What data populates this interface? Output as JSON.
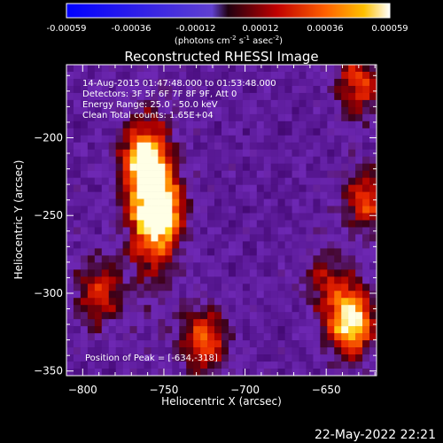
{
  "colorbar": {
    "tick_labels": [
      "-0.00059",
      "-0.00036",
      "-0.00012",
      "0.00012",
      "0.00036",
      "0.00059"
    ],
    "range": [
      -0.00059,
      0.00059
    ],
    "units_label_pre": "(photons cm",
    "units_sup1": "-2",
    "units_mid": " s",
    "units_sup2": "-1",
    "units_mid2": " asec",
    "units_sup3": "-2",
    "units_post": ")"
  },
  "chart_data": {
    "type": "heatmap",
    "title": "Reconstructed RHESSI Image",
    "xlabel": "Heliocentric X (arcsec)",
    "ylabel": "Heliocentric Y (arcsec)",
    "xlim": [
      -810,
      -619
    ],
    "ylim": [
      -353,
      -153
    ],
    "x_ticks": [
      -800,
      -750,
      -700,
      -650
    ],
    "y_ticks": [
      -350,
      -300,
      -250,
      -200
    ],
    "x_tick_labels": [
      "−800",
      "−750",
      "−700",
      "−650"
    ],
    "y_tick_labels": [
      "−350",
      "−300",
      "−250",
      "−200"
    ],
    "annotations": [
      "14-Aug-2015 01:47:48.000 to 01:53:48.000",
      "Detectors: 3F 5F 6F 7F 8F 9F, Att 0",
      "Energy Range: 25.0 - 50.0 keV",
      "Clean     Total counts: 1.65E+04"
    ],
    "peak_label": "Position of Peak = [-634,-318]",
    "peak": [
      -634,
      -318
    ],
    "grid": false,
    "sources": [
      {
        "x": -762,
        "y": -215,
        "intensity": 0.75
      },
      {
        "x": -753,
        "y": -248,
        "intensity": 0.9
      },
      {
        "x": -635,
        "y": -318,
        "intensity": 1.0
      },
      {
        "x": -630,
        "y": -165,
        "intensity": 0.55
      },
      {
        "x": -790,
        "y": -300,
        "intensity": 0.5
      },
      {
        "x": -725,
        "y": -330,
        "intensity": 0.6
      },
      {
        "x": -625,
        "y": -240,
        "intensity": 0.55
      },
      {
        "x": -650,
        "y": -290,
        "intensity": 0.35
      }
    ]
  },
  "footer": {
    "date": "22-May-2022 22:21"
  }
}
